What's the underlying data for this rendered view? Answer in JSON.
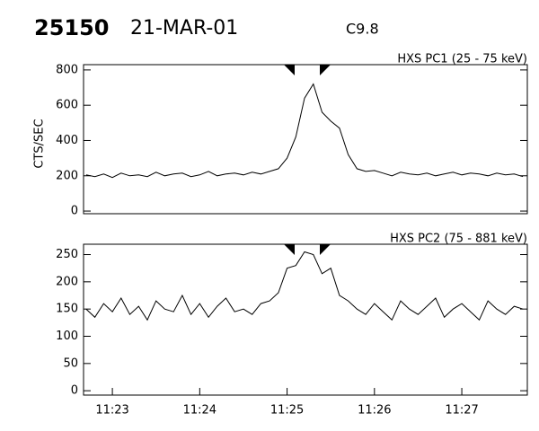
{
  "header": {
    "id": "25150",
    "date": "21-MAR-01",
    "class": "C9.8"
  },
  "chart_data": [
    {
      "type": "line",
      "title": "HXS PC1 (25 - 75 keV)",
      "ylabel": "CTS/SEC",
      "x": [
        682.7,
        682.8,
        682.9,
        683.0,
        683.1,
        683.2,
        683.3,
        683.4,
        683.5,
        683.6,
        683.7,
        683.8,
        683.9,
        684.0,
        684.1,
        684.2,
        684.3,
        684.4,
        684.5,
        684.6,
        684.7,
        684.8,
        684.9,
        685.0,
        685.1,
        685.2,
        685.3,
        685.4,
        685.5,
        685.6,
        685.7,
        685.8,
        685.9,
        686.0,
        686.1,
        686.2,
        686.3,
        686.4,
        686.5,
        686.6,
        686.7,
        686.8,
        686.9,
        687.0,
        687.1,
        687.2,
        687.3,
        687.4,
        687.5,
        687.6,
        687.7
      ],
      "series": [
        {
          "color": "#000000",
          "values": [
            205,
            195,
            210,
            190,
            215,
            200,
            205,
            195,
            220,
            200,
            210,
            215,
            195,
            205,
            225,
            200,
            210,
            215,
            205,
            220,
            210,
            225,
            240,
            300,
            420,
            640,
            720,
            560,
            510,
            470,
            320,
            240,
            225,
            230,
            215,
            200,
            220,
            210,
            205,
            215,
            200,
            210,
            220,
            205,
            215,
            210,
            200,
            215,
            205,
            210,
            195
          ]
        }
      ],
      "xlim": [
        682.67,
        687.75
      ],
      "ylim": [
        -15,
        830
      ],
      "yticks": [
        0,
        200,
        400,
        600,
        800
      ]
    },
    {
      "type": "line",
      "title": "HXS PC2 (75 - 881 keV)",
      "x": [
        682.7,
        682.8,
        682.9,
        683.0,
        683.1,
        683.2,
        683.3,
        683.4,
        683.5,
        683.6,
        683.7,
        683.8,
        683.9,
        684.0,
        684.1,
        684.2,
        684.3,
        684.4,
        684.5,
        684.6,
        684.7,
        684.8,
        684.9,
        685.0,
        685.1,
        685.2,
        685.3,
        685.4,
        685.5,
        685.6,
        685.7,
        685.8,
        685.9,
        686.0,
        686.1,
        686.2,
        686.3,
        686.4,
        686.5,
        686.6,
        686.7,
        686.8,
        686.9,
        687.0,
        687.1,
        687.2,
        687.3,
        687.4,
        687.5,
        687.6,
        687.7
      ],
      "series": [
        {
          "color": "#000000",
          "values": [
            150,
            135,
            160,
            145,
            170,
            140,
            155,
            130,
            165,
            150,
            145,
            175,
            140,
            160,
            135,
            155,
            170,
            145,
            150,
            140,
            160,
            165,
            180,
            225,
            230,
            255,
            250,
            215,
            225,
            175,
            165,
            150,
            140,
            160,
            145,
            130,
            165,
            150,
            140,
            155,
            170,
            135,
            150,
            160,
            145,
            130,
            165,
            150,
            140,
            155,
            150
          ]
        }
      ],
      "xlim": [
        682.67,
        687.75
      ],
      "ylim": [
        -8,
        269
      ],
      "yticks": [
        0,
        50,
        100,
        150,
        200,
        250
      ],
      "xticks": [
        {
          "value": 683,
          "label": "11:23"
        },
        {
          "value": 684,
          "label": "11:24"
        },
        {
          "value": 685,
          "label": "11:25"
        },
        {
          "value": 686,
          "label": "11:26"
        },
        {
          "value": 687,
          "label": "11:27"
        }
      ]
    }
  ]
}
